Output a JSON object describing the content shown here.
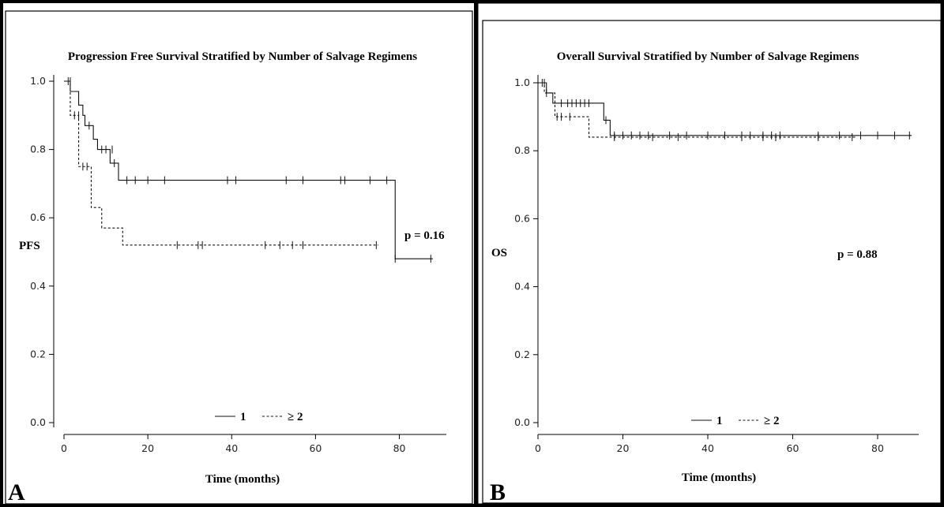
{
  "chart_data": [
    {
      "type": "line",
      "panel_label": "A",
      "title": "Progression Free Survival Stratified by Number of Salvage Regimens",
      "xlabel": "Time (months)",
      "ylabel": "PFS",
      "xlim": [
        0,
        90
      ],
      "ylim": [
        0,
        1.0
      ],
      "xticks": [
        "0",
        "20",
        "40",
        "60",
        "80"
      ],
      "yticks": [
        "0.0",
        "0.2",
        "0.4",
        "0.6",
        "0.8",
        "1.0"
      ],
      "annotation": "p = 0.16",
      "legend_position": "bottom-center",
      "series": [
        {
          "name": "1",
          "style": "solid",
          "steps": [
            [
              0,
              1.0
            ],
            [
              1.5,
              0.97
            ],
            [
              3.5,
              0.93
            ],
            [
              4.5,
              0.9
            ],
            [
              5,
              0.87
            ],
            [
              7,
              0.83
            ],
            [
              8,
              0.8
            ],
            [
              11,
              0.76
            ],
            [
              13,
              0.71
            ],
            [
              79,
              0.48
            ],
            [
              88,
              0.48
            ]
          ],
          "censored": [
            [
              1,
              1.0
            ],
            [
              6,
              0.87
            ],
            [
              9,
              0.8
            ],
            [
              10,
              0.8
            ],
            [
              11.5,
              0.8
            ],
            [
              12,
              0.76
            ],
            [
              15,
              0.71
            ],
            [
              17,
              0.71
            ],
            [
              20,
              0.71
            ],
            [
              24,
              0.71
            ],
            [
              39,
              0.71
            ],
            [
              41,
              0.71
            ],
            [
              53,
              0.71
            ],
            [
              57,
              0.71
            ],
            [
              66,
              0.71
            ],
            [
              67,
              0.71
            ],
            [
              73,
              0.71
            ],
            [
              77,
              0.71
            ],
            [
              79,
              0.48
            ],
            [
              87.5,
              0.48
            ]
          ]
        },
        {
          "name": "≥ 2",
          "style": "dashed",
          "steps": [
            [
              0,
              1.0
            ],
            [
              1.5,
              0.9
            ],
            [
              3.5,
              0.75
            ],
            [
              6.5,
              0.63
            ],
            [
              9,
              0.57
            ],
            [
              14,
              0.52
            ],
            [
              75,
              0.52
            ]
          ],
          "censored": [
            [
              1.5,
              1.0
            ],
            [
              2.5,
              0.9
            ],
            [
              3.5,
              0.9
            ],
            [
              4.5,
              0.75
            ],
            [
              5.5,
              0.75
            ],
            [
              27,
              0.52
            ],
            [
              32,
              0.52
            ],
            [
              33,
              0.52
            ],
            [
              48,
              0.52
            ],
            [
              51.5,
              0.52
            ],
            [
              54.5,
              0.52
            ],
            [
              57,
              0.52
            ],
            [
              74.5,
              0.52
            ]
          ]
        }
      ]
    },
    {
      "type": "line",
      "panel_label": "B",
      "title": "Overall Survival Stratified by Number of Salvage Regimens",
      "xlabel": "Time (months)",
      "ylabel": "OS",
      "xlim": [
        0,
        90
      ],
      "ylim": [
        0,
        1.0
      ],
      "xticks": [
        "0",
        "20",
        "40",
        "60",
        "80"
      ],
      "yticks": [
        "0.0",
        "0.2",
        "0.4",
        "0.6",
        "0.8",
        "1.0"
      ],
      "annotation": "p = 0.88",
      "legend_position": "bottom-center",
      "series": [
        {
          "name": "1",
          "style": "solid",
          "steps": [
            [
              0,
              1.0
            ],
            [
              2,
              0.97
            ],
            [
              3.5,
              0.94
            ],
            [
              15.5,
              0.89
            ],
            [
              17,
              0.845
            ],
            [
              88,
              0.845
            ]
          ],
          "censored": [
            [
              1.5,
              1.0
            ],
            [
              5.5,
              0.94
            ],
            [
              7,
              0.94
            ],
            [
              8,
              0.94
            ],
            [
              9,
              0.94
            ],
            [
              10,
              0.94
            ],
            [
              11,
              0.94
            ],
            [
              12,
              0.94
            ],
            [
              16,
              0.89
            ],
            [
              18,
              0.845
            ],
            [
              20,
              0.845
            ],
            [
              22,
              0.845
            ],
            [
              24,
              0.845
            ],
            [
              26,
              0.845
            ],
            [
              31,
              0.845
            ],
            [
              35,
              0.845
            ],
            [
              40,
              0.845
            ],
            [
              44,
              0.845
            ],
            [
              48,
              0.845
            ],
            [
              50,
              0.845
            ],
            [
              53,
              0.845
            ],
            [
              55,
              0.845
            ],
            [
              57,
              0.845
            ],
            [
              66,
              0.845
            ],
            [
              71,
              0.845
            ],
            [
              76,
              0.845
            ],
            [
              80,
              0.845
            ],
            [
              84,
              0.845
            ],
            [
              87.5,
              0.845
            ]
          ]
        },
        {
          "name": "≥ 2",
          "style": "dashed",
          "steps": [
            [
              0,
              1.0
            ],
            [
              1.5,
              0.97
            ],
            [
              4,
              0.9
            ],
            [
              12,
              0.84
            ],
            [
              75,
              0.84
            ]
          ],
          "censored": [
            [
              1,
              1.0
            ],
            [
              2,
              0.97
            ],
            [
              4.5,
              0.9
            ],
            [
              5.5,
              0.9
            ],
            [
              7.5,
              0.9
            ],
            [
              18,
              0.84
            ],
            [
              27,
              0.84
            ],
            [
              33,
              0.84
            ],
            [
              48,
              0.84
            ],
            [
              53,
              0.84
            ],
            [
              56,
              0.84
            ],
            [
              66,
              0.84
            ],
            [
              74,
              0.84
            ]
          ]
        }
      ]
    }
  ]
}
